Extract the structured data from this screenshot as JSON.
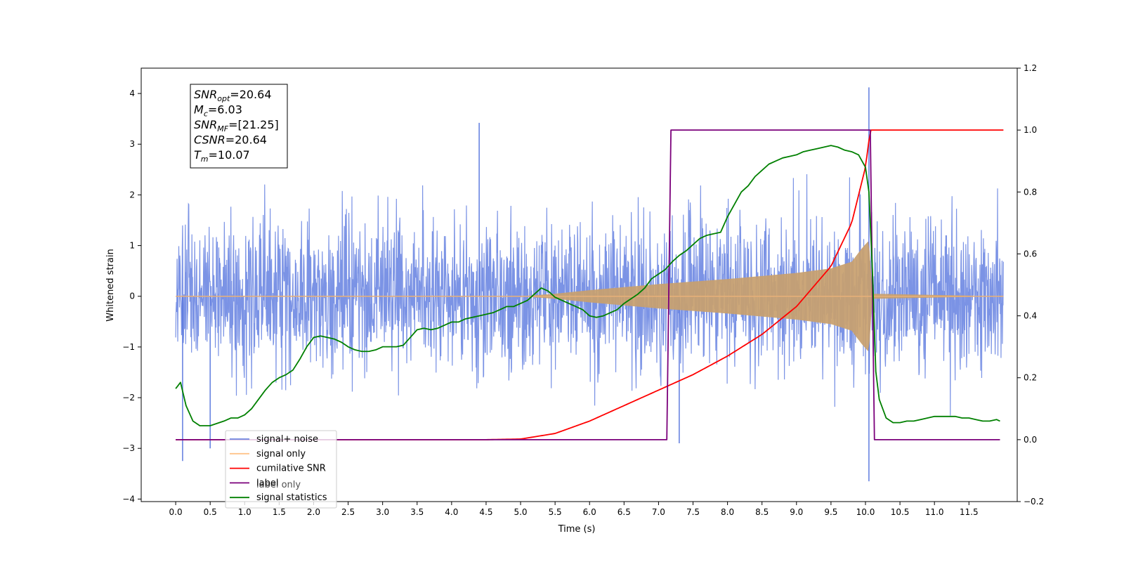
{
  "chart_data": {
    "type": "line",
    "title": "",
    "xlabel": "Time (s)",
    "ylabel": "Whitened strain",
    "y2label": "",
    "xlim": [
      -0.5,
      12.2
    ],
    "ylim": [
      -4.05,
      4.5
    ],
    "y2lim": [
      -0.2,
      1.2
    ],
    "x_ticks": [
      "0.0",
      "0.5",
      "1.0",
      "1.5",
      "2.0",
      "2.5",
      "3.0",
      "3.5",
      "4.0",
      "4.5",
      "5.0",
      "5.5",
      "6.0",
      "6.5",
      "7.0",
      "7.5",
      "8.0",
      "8.5",
      "9.0",
      "9.5",
      "10.0",
      "10.5",
      "11.0",
      "11.5"
    ],
    "y_ticks": [
      "4",
      "3",
      "2",
      "1",
      "0",
      "−1",
      "−2",
      "−3",
      "−4"
    ],
    "y2_ticks": [
      "1.2",
      "1.0",
      "0.8",
      "0.6",
      "0.4",
      "0.2",
      "0.0",
      "−0.2"
    ],
    "grid": false,
    "legend_position": "lower-left",
    "series": [
      {
        "name": "signal+ noise",
        "axis": "left",
        "color": "#4f6fdc",
        "x_range": [
          0,
          12
        ],
        "noise_std": 0.75,
        "spikes": [
          {
            "x": 4.4,
            "y": 3.42
          },
          {
            "x": 10.05,
            "y": 4.12
          },
          {
            "x": 10.05,
            "y": -3.65
          },
          {
            "x": 0.1,
            "y": -3.25
          },
          {
            "x": 0.5,
            "y": -3.0
          },
          {
            "x": 7.3,
            "y": -2.9
          }
        ]
      },
      {
        "name": "signal only",
        "axis": "left",
        "color": "#c8a06e",
        "envelope_x": [
          5.0,
          5.5,
          6.0,
          6.5,
          7.0,
          7.5,
          8.0,
          8.5,
          9.0,
          9.5,
          9.8,
          9.95,
          10.05,
          10.1,
          12.0
        ],
        "envelope_y": [
          0.0,
          0.05,
          0.12,
          0.18,
          0.24,
          0.29,
          0.34,
          0.4,
          0.46,
          0.55,
          0.68,
          0.95,
          1.1,
          0.05,
          0.0
        ]
      },
      {
        "name": "cumilative SNR",
        "axis": "right",
        "color": "#ff0000",
        "x": [
          0.0,
          4.5,
          5.0,
          5.5,
          6.0,
          6.5,
          7.0,
          7.5,
          8.0,
          8.5,
          9.0,
          9.5,
          9.8,
          10.0,
          10.07,
          12.0
        ],
        "y": [
          0.0,
          0.0,
          0.002,
          0.02,
          0.06,
          0.11,
          0.16,
          0.21,
          0.27,
          0.34,
          0.43,
          0.56,
          0.7,
          0.88,
          1.0,
          1.0
        ]
      },
      {
        "name": "label",
        "axis": "right",
        "color": "#7b007b",
        "x": [
          0.0,
          7.12,
          7.18,
          10.07,
          10.13,
          11.95
        ],
        "y": [
          0.0,
          0.0,
          1.0,
          1.0,
          0.0,
          0.0
        ]
      },
      {
        "name": "label only",
        "axis": "right",
        "color": "#7b007b"
      },
      {
        "name": "signal statistics",
        "axis": "right",
        "color": "#008000",
        "x": [
          0.0,
          0.07,
          0.15,
          0.25,
          0.35,
          0.5,
          0.7,
          0.8,
          0.9,
          1.0,
          1.1,
          1.2,
          1.3,
          1.4,
          1.5,
          1.6,
          1.7,
          1.8,
          1.9,
          2.0,
          2.1,
          2.2,
          2.3,
          2.4,
          2.5,
          2.6,
          2.7,
          2.8,
          2.9,
          3.0,
          3.1,
          3.2,
          3.3,
          3.4,
          3.5,
          3.6,
          3.7,
          3.8,
          3.9,
          4.0,
          4.1,
          4.2,
          4.3,
          4.4,
          4.5,
          4.6,
          4.7,
          4.8,
          4.9,
          5.0,
          5.1,
          5.2,
          5.3,
          5.4,
          5.5,
          5.6,
          5.7,
          5.8,
          5.9,
          6.0,
          6.1,
          6.2,
          6.3,
          6.4,
          6.5,
          6.6,
          6.7,
          6.8,
          6.9,
          7.0,
          7.1,
          7.2,
          7.3,
          7.4,
          7.5,
          7.6,
          7.7,
          7.8,
          7.9,
          8.0,
          8.1,
          8.2,
          8.3,
          8.4,
          8.5,
          8.6,
          8.7,
          8.8,
          8.9,
          9.0,
          9.1,
          9.2,
          9.3,
          9.4,
          9.5,
          9.6,
          9.7,
          9.8,
          9.9,
          10.0,
          10.05,
          10.1,
          10.15,
          10.2,
          10.3,
          10.4,
          10.5,
          10.6,
          10.7,
          10.8,
          10.9,
          11.0,
          11.1,
          11.2,
          11.3,
          11.4,
          11.5,
          11.6,
          11.7,
          11.8,
          11.9,
          11.95
        ],
        "y": [
          0.165,
          0.185,
          0.11,
          0.06,
          0.045,
          0.045,
          0.06,
          0.07,
          0.07,
          0.08,
          0.1,
          0.13,
          0.16,
          0.185,
          0.2,
          0.21,
          0.225,
          0.26,
          0.3,
          0.33,
          0.335,
          0.33,
          0.325,
          0.315,
          0.3,
          0.29,
          0.285,
          0.285,
          0.29,
          0.3,
          0.3,
          0.3,
          0.305,
          0.33,
          0.355,
          0.36,
          0.355,
          0.36,
          0.37,
          0.38,
          0.38,
          0.39,
          0.395,
          0.4,
          0.405,
          0.41,
          0.42,
          0.43,
          0.43,
          0.44,
          0.45,
          0.47,
          0.49,
          0.48,
          0.46,
          0.45,
          0.44,
          0.43,
          0.42,
          0.4,
          0.395,
          0.4,
          0.41,
          0.42,
          0.44,
          0.455,
          0.47,
          0.49,
          0.52,
          0.535,
          0.55,
          0.575,
          0.595,
          0.61,
          0.63,
          0.65,
          0.66,
          0.665,
          0.67,
          0.72,
          0.76,
          0.8,
          0.82,
          0.85,
          0.87,
          0.89,
          0.9,
          0.91,
          0.915,
          0.92,
          0.93,
          0.935,
          0.94,
          0.945,
          0.95,
          0.945,
          0.935,
          0.93,
          0.92,
          0.88,
          0.8,
          0.55,
          0.22,
          0.13,
          0.07,
          0.055,
          0.055,
          0.06,
          0.06,
          0.065,
          0.07,
          0.075,
          0.075,
          0.075,
          0.075,
          0.07,
          0.07,
          0.065,
          0.06,
          0.06,
          0.065,
          0.06
        ]
      }
    ],
    "annotation_lines": [
      {
        "name": "SNR",
        "sub": "opt",
        "value": "=20.64"
      },
      {
        "name": "M",
        "sub": "c",
        "value": "=6.03"
      },
      {
        "name": "SNR",
        "sub": "MF",
        "value": "=[21.25]"
      },
      {
        "name": "CSNR",
        "sub": "",
        "value": "=20.64"
      },
      {
        "name": "T",
        "sub": "m",
        "value": "=10.07"
      }
    ]
  }
}
